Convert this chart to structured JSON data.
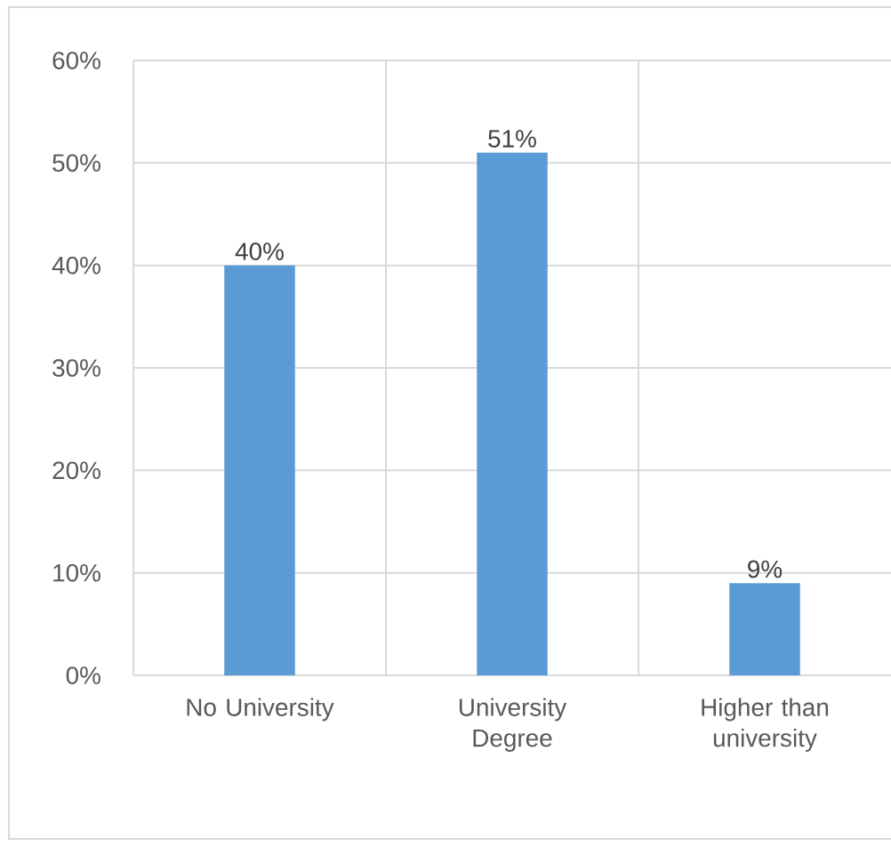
{
  "chart_data": {
    "type": "bar",
    "categories": [
      "No University",
      "University Degree",
      "Higher than university"
    ],
    "values": [
      40,
      51,
      9
    ],
    "value_labels": [
      "40%",
      "51%",
      "9%"
    ],
    "color": "#5b9bd5",
    "ylim": [
      0,
      60
    ],
    "yticks": [
      {
        "value": 0,
        "label": "0%"
      },
      {
        "value": 10,
        "label": "10%"
      },
      {
        "value": 20,
        "label": "20%"
      },
      {
        "value": 30,
        "label": "30%"
      },
      {
        "value": 40,
        "label": "40%"
      },
      {
        "value": 50,
        "label": "50%"
      },
      {
        "value": 60,
        "label": "60%"
      }
    ],
    "grid": true
  }
}
